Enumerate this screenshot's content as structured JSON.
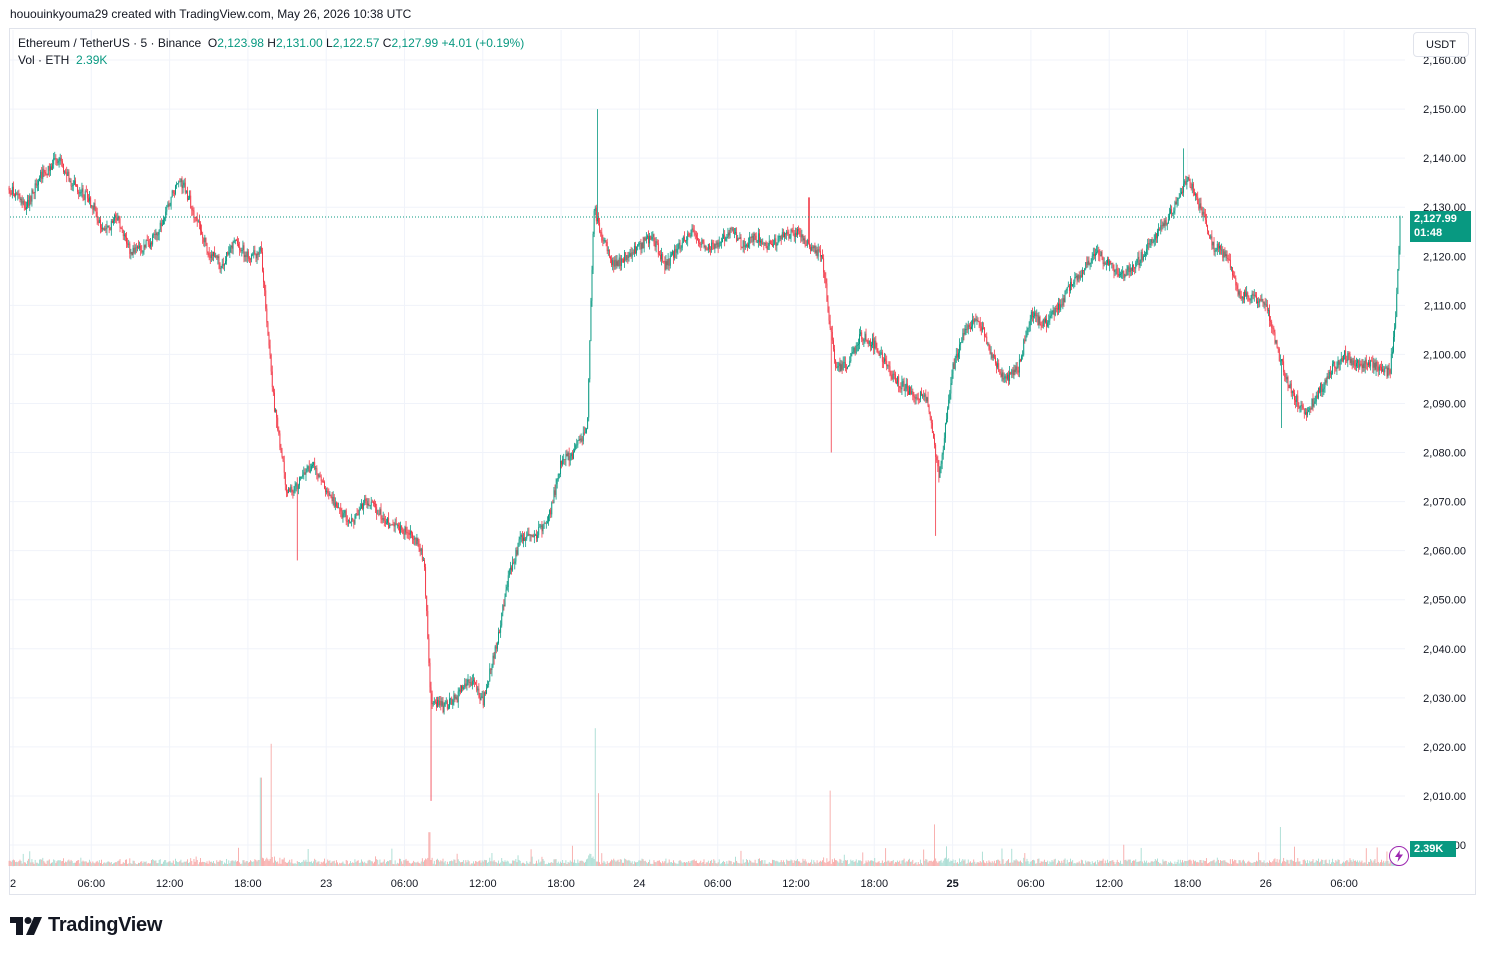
{
  "header": {
    "credit": "hououinkyouma29 created with TradingView.com, May 26, 2026 10:38 UTC"
  },
  "legend": {
    "symbol": "Ethereum / TetherUS · 5 · Binance",
    "open_key": "O",
    "open": "2,123.98",
    "high_key": "H",
    "high": "2,131.00",
    "low_key": "L",
    "low": "2,122.57",
    "close_key": "C",
    "close": "2,127.99",
    "change": "+4.01 (+0.19%)",
    "vol_label": "Vol · ETH",
    "vol_value": "2.39K"
  },
  "currency": "USDT",
  "last_price_tag": {
    "price": "2,127.99",
    "countdown": "01:48"
  },
  "volume_tag": "2.39K",
  "brand": "TradingView",
  "colors": {
    "up": "#089981",
    "down": "#f23645",
    "grid": "#f0f3fa",
    "price_line": "#089981",
    "vol_up": "#a7dcd2",
    "vol_down": "#f7a9a7"
  },
  "chart_data": {
    "type": "candlestick",
    "symbol": "ETH/USDT",
    "interval": "5",
    "exchange": "Binance",
    "ylim": [
      2000,
      2160
    ],
    "y_ticks": [
      "2,160.00",
      "2,150.00",
      "2,140.00",
      "2,130.00",
      "2,120.00",
      "2,110.00",
      "2,100.00",
      "2,090.00",
      "2,080.00",
      "2,070.00",
      "2,060.00",
      "2,050.00",
      "2,040.00",
      "2,030.00",
      "2,020.00",
      "2,010.00",
      "2,000.00"
    ],
    "x_ticks": [
      {
        "label": "2",
        "hour": 0
      },
      {
        "label": "06:00",
        "hour": 6
      },
      {
        "label": "12:00",
        "hour": 12
      },
      {
        "label": "18:00",
        "hour": 18
      },
      {
        "label": "23",
        "hour": 24
      },
      {
        "label": "06:00",
        "hour": 30
      },
      {
        "label": "12:00",
        "hour": 36
      },
      {
        "label": "18:00",
        "hour": 42
      },
      {
        "label": "24",
        "hour": 48
      },
      {
        "label": "06:00",
        "hour": 54
      },
      {
        "label": "12:00",
        "hour": 60
      },
      {
        "label": "18:00",
        "hour": 66
      },
      {
        "label": "25",
        "hour": 72
      },
      {
        "label": "06:00",
        "hour": 78
      },
      {
        "label": "12:00",
        "hour": 84
      },
      {
        "label": "18:00",
        "hour": 90
      },
      {
        "label": "26",
        "hour": 96
      },
      {
        "label": "06:00",
        "hour": 102
      }
    ],
    "price_path": [
      [
        -0.3,
        2134
      ],
      [
        1,
        2130
      ],
      [
        2,
        2136
      ],
      [
        3.5,
        2140
      ],
      [
        4.5,
        2135
      ],
      [
        6,
        2131
      ],
      [
        7,
        2125
      ],
      [
        8,
        2128
      ],
      [
        9,
        2121
      ],
      [
        10,
        2122
      ],
      [
        11,
        2124
      ],
      [
        12.4,
        2134
      ],
      [
        13,
        2135
      ],
      [
        14,
        2128
      ],
      [
        15,
        2121
      ],
      [
        16,
        2118
      ],
      [
        17,
        2123
      ],
      [
        18,
        2120
      ],
      [
        19,
        2121
      ],
      [
        20,
        2090
      ],
      [
        21,
        2072
      ],
      [
        22,
        2074
      ],
      [
        23,
        2078
      ],
      [
        24,
        2072
      ],
      [
        25,
        2068
      ],
      [
        26,
        2066
      ],
      [
        27,
        2070
      ],
      [
        28,
        2068
      ],
      [
        29,
        2065
      ],
      [
        30,
        2064
      ],
      [
        31,
        2062
      ],
      [
        31.5,
        2058
      ],
      [
        32,
        2030
      ],
      [
        33,
        2028
      ],
      [
        34,
        2030
      ],
      [
        35,
        2034
      ],
      [
        36,
        2029
      ],
      [
        37,
        2040
      ],
      [
        38,
        2055
      ],
      [
        39,
        2063
      ],
      [
        40,
        2063
      ],
      [
        41,
        2066
      ],
      [
        42,
        2078
      ],
      [
        43,
        2080
      ],
      [
        44,
        2085
      ],
      [
        44.5,
        2130
      ],
      [
        45,
        2125
      ],
      [
        46,
        2118
      ],
      [
        47,
        2120
      ],
      [
        48,
        2122
      ],
      [
        49,
        2124
      ],
      [
        50,
        2118
      ],
      [
        51,
        2122
      ],
      [
        52,
        2125
      ],
      [
        53,
        2122
      ],
      [
        54,
        2122
      ],
      [
        55,
        2125
      ],
      [
        56,
        2122
      ],
      [
        57,
        2124
      ],
      [
        58,
        2122
      ],
      [
        59,
        2124
      ],
      [
        60,
        2125
      ],
      [
        61,
        2122
      ],
      [
        62,
        2120
      ],
      [
        63,
        2097
      ],
      [
        64,
        2098
      ],
      [
        65,
        2104
      ],
      [
        66,
        2102
      ],
      [
        67,
        2097
      ],
      [
        68,
        2094
      ],
      [
        69,
        2092
      ],
      [
        70,
        2091
      ],
      [
        71,
        2075
      ],
      [
        72,
        2097
      ],
      [
        73,
        2105
      ],
      [
        74,
        2107
      ],
      [
        75,
        2100
      ],
      [
        76,
        2095
      ],
      [
        77,
        2097
      ],
      [
        78,
        2108
      ],
      [
        79,
        2106
      ],
      [
        80,
        2109
      ],
      [
        81,
        2114
      ],
      [
        82,
        2117
      ],
      [
        83,
        2121
      ],
      [
        84,
        2118
      ],
      [
        85,
        2116
      ],
      [
        86,
        2118
      ],
      [
        87,
        2122
      ],
      [
        88,
        2126
      ],
      [
        89,
        2130
      ],
      [
        90,
        2136
      ],
      [
        91,
        2130
      ],
      [
        92,
        2122
      ],
      [
        93,
        2120
      ],
      [
        94,
        2112
      ],
      [
        95,
        2112
      ],
      [
        96,
        2110
      ],
      [
        97,
        2100
      ],
      [
        98,
        2092
      ],
      [
        99,
        2088
      ],
      [
        100,
        2092
      ],
      [
        101,
        2097
      ],
      [
        102,
        2100
      ],
      [
        103,
        2098
      ],
      [
        104,
        2098
      ],
      [
        105,
        2097
      ],
      [
        105.5,
        2096
      ],
      [
        106,
        2110
      ],
      [
        106.3,
        2128
      ]
    ],
    "spikes": [
      {
        "hour": 20.2,
        "low": 2085
      },
      {
        "hour": 21.8,
        "low": 2058
      },
      {
        "hour": 32.0,
        "low": 2009
      },
      {
        "hour": 44.8,
        "high": 2150
      },
      {
        "hour": 61.0,
        "high": 2132
      },
      {
        "hour": 62.7,
        "low": 2080
      },
      {
        "hour": 70.7,
        "low": 2063
      },
      {
        "hour": 89.7,
        "high": 2142
      },
      {
        "hour": 97.2,
        "low": 2085
      }
    ],
    "volume_spikes": [
      {
        "hour": 19.0,
        "value": 3.4
      },
      {
        "hour": 19.8,
        "value": 4.7
      },
      {
        "hour": 31.9,
        "value": 1.3
      },
      {
        "hour": 44.6,
        "value": 5.3
      },
      {
        "hour": 44.9,
        "value": 2.8
      },
      {
        "hour": 62.6,
        "value": 2.9
      },
      {
        "hour": 70.6,
        "value": 1.6
      },
      {
        "hour": 97.1,
        "value": 1.5
      }
    ]
  }
}
